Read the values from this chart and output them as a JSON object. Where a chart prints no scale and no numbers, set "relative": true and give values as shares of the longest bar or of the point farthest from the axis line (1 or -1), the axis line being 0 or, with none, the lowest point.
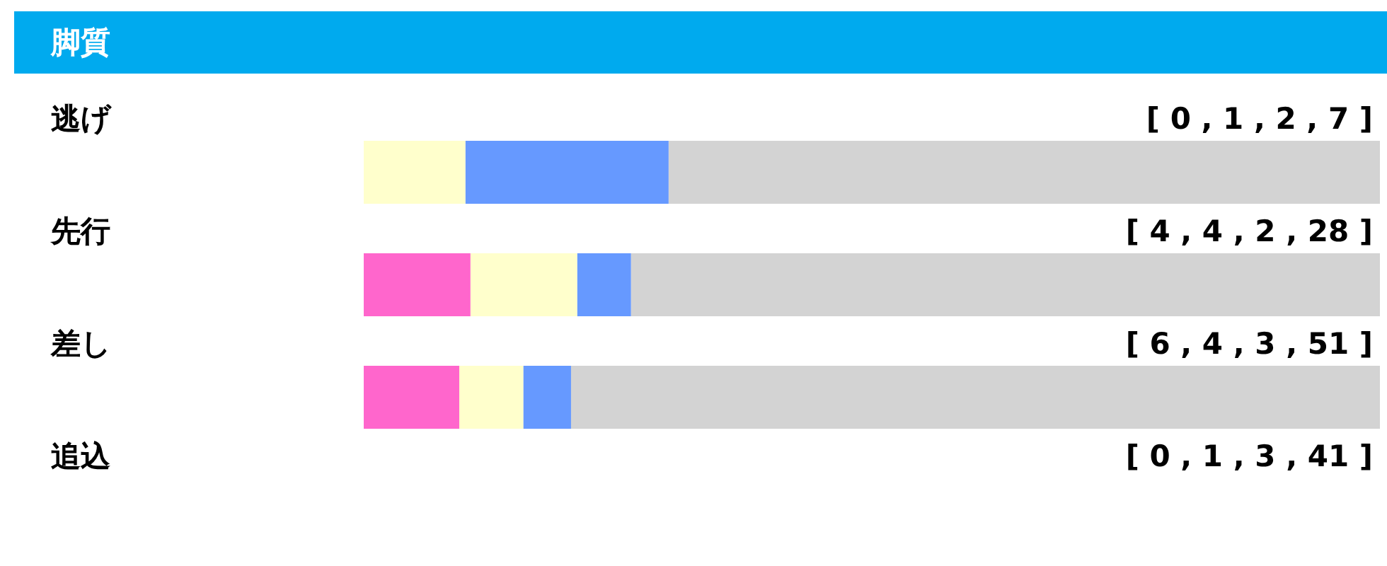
{
  "chart_data": {
    "type": "bar",
    "title": "脚質",
    "orientation": "horizontal",
    "stacked": true,
    "relative": true,
    "categories": [
      "逃げ",
      "先行",
      "差し",
      "追込"
    ],
    "series": [
      {
        "color": "#ff66cc",
        "values": [
          0,
          0.105,
          0.094,
          null
        ]
      },
      {
        "color": "#ffffcc",
        "values": [
          0.1,
          0.105,
          0.063,
          null
        ]
      },
      {
        "color": "#6699ff",
        "values": [
          0.2,
          0.053,
          0.047,
          null
        ]
      },
      {
        "color": "#d3d3d3",
        "values": [
          0.7,
          0.737,
          0.796,
          null
        ]
      }
    ],
    "annotations": [
      "[ 0 , 1 , 2 , 7 ]",
      "[ 4 , 4 , 2 , 28 ]",
      "[ 6 , 4 , 3 , 51 ]",
      "[ 0 , 1 , 3 , 41 ]"
    ]
  }
}
